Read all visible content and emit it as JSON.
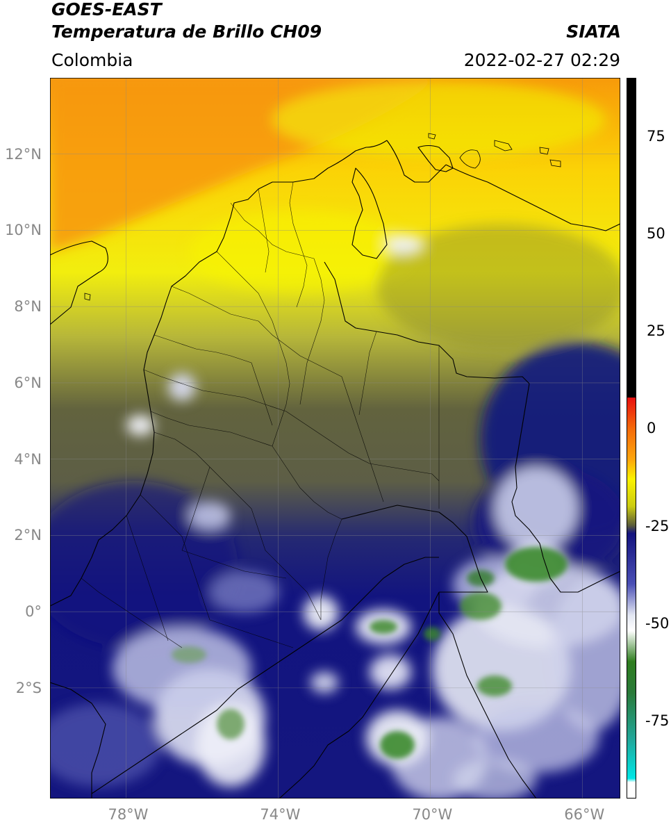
{
  "header": {
    "satellite": "GOES-EAST",
    "product": "Temperatura de Brillo CH09",
    "region": "Colombia",
    "agency": "SIATA",
    "datetime": "2022-02-27 02:29"
  },
  "map": {
    "lon_range": [
      -80,
      -65
    ],
    "lat_range": [
      -4.9,
      14
    ],
    "lat_ticks": [
      {
        "value": 12,
        "label": "12°N"
      },
      {
        "value": 10,
        "label": "10°N"
      },
      {
        "value": 8,
        "label": "8°N"
      },
      {
        "value": 6,
        "label": "6°N"
      },
      {
        "value": 4,
        "label": "4°N"
      },
      {
        "value": 2,
        "label": "2°N"
      },
      {
        "value": 0,
        "label": "0°"
      },
      {
        "value": -2,
        "label": "2°S"
      }
    ],
    "lon_ticks": [
      {
        "value": -78,
        "label": "78°W"
      },
      {
        "value": -74,
        "label": "74°W"
      },
      {
        "value": -70,
        "label": "70°W"
      },
      {
        "value": -66,
        "label": "66°W"
      }
    ],
    "grid": true
  },
  "colorbar": {
    "range": [
      -95,
      90
    ],
    "ticks": [
      {
        "value": 75,
        "label": "75"
      },
      {
        "value": 50,
        "label": "50"
      },
      {
        "value": 25,
        "label": "25"
      },
      {
        "value": 0,
        "label": "0"
      },
      {
        "value": -25,
        "label": "-25"
      },
      {
        "value": -50,
        "label": "-50"
      },
      {
        "value": -75,
        "label": "-75"
      }
    ],
    "stops": [
      {
        "value": 90,
        "color": "#000000"
      },
      {
        "value": 8,
        "color": "#000000"
      },
      {
        "value": 7.9,
        "color": "#e8100f"
      },
      {
        "value": 0,
        "color": "#f46a0a"
      },
      {
        "value": -8,
        "color": "#fda60c"
      },
      {
        "value": -13,
        "color": "#fbf200"
      },
      {
        "value": -20,
        "color": "#cccc10"
      },
      {
        "value": -25,
        "color": "#595a3a"
      },
      {
        "value": -27,
        "color": "#13137e"
      },
      {
        "value": -40,
        "color": "#4a4fb5"
      },
      {
        "value": -48,
        "color": "#e2e6f2"
      },
      {
        "value": -52,
        "color": "#ffffff"
      },
      {
        "value": -60,
        "color": "#2e7d1e"
      },
      {
        "value": -68,
        "color": "#2a7a3a"
      },
      {
        "value": -80,
        "color": "#21a79a"
      },
      {
        "value": -90,
        "color": "#00e6e6"
      },
      {
        "value": -91,
        "color": "#ffffff"
      },
      {
        "value": -95,
        "color": "#ffffff"
      }
    ]
  }
}
